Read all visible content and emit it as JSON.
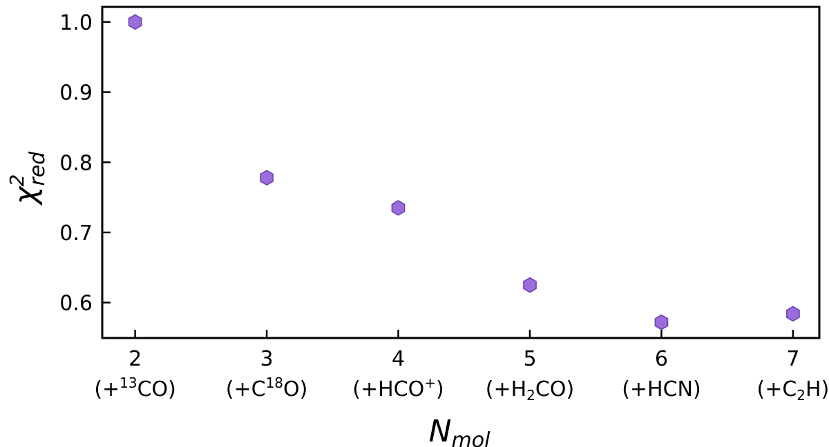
{
  "chart_data": {
    "type": "scatter",
    "title": "",
    "xlabel": "N",
    "xlabel_sub": "mol",
    "ylabel": "χ",
    "ylabel_sup": "2",
    "ylabel_sub": "red",
    "xlim": [
      1.75,
      7.2
    ],
    "ylim": [
      0.5495,
      1.0215
    ],
    "grid": false,
    "marker": "hexagon",
    "marker_color": "#9b6ddb",
    "marker_edge_color": "#6a3bb3",
    "x_ticks": [
      2,
      3,
      4,
      5,
      6,
      7
    ],
    "x_tick_labels": [
      {
        "number": "2",
        "pre": "(+",
        "sup": "13",
        "base": "CO",
        "sub": "",
        "post": ")"
      },
      {
        "number": "3",
        "pre": "(+C",
        "sup": "18",
        "base": "O",
        "sub": "",
        "post": ")"
      },
      {
        "number": "4",
        "pre": "(+HCO",
        "sup": "+",
        "base": "",
        "sub": "",
        "post": ")"
      },
      {
        "number": "5",
        "pre": "(+H",
        "sup": "",
        "base": "CO",
        "sub": "2",
        "post": ")"
      },
      {
        "number": "6",
        "pre": "(+HCN",
        "sup": "",
        "base": "",
        "sub": "",
        "post": ")"
      },
      {
        "number": "7",
        "pre": "(+C",
        "sup": "",
        "base": "H)",
        "sub": "2",
        "post": ""
      }
    ],
    "y_ticks": [
      0.6,
      0.7,
      0.8,
      0.9,
      1.0
    ],
    "y_tick_labels": [
      "0.6",
      "0.7",
      "0.8",
      "0.9",
      "1.0"
    ],
    "series": [
      {
        "x": [
          2,
          3,
          4,
          5,
          6,
          7
        ],
        "y": [
          1.0,
          0.778,
          0.735,
          0.625,
          0.572,
          0.584
        ]
      }
    ]
  }
}
